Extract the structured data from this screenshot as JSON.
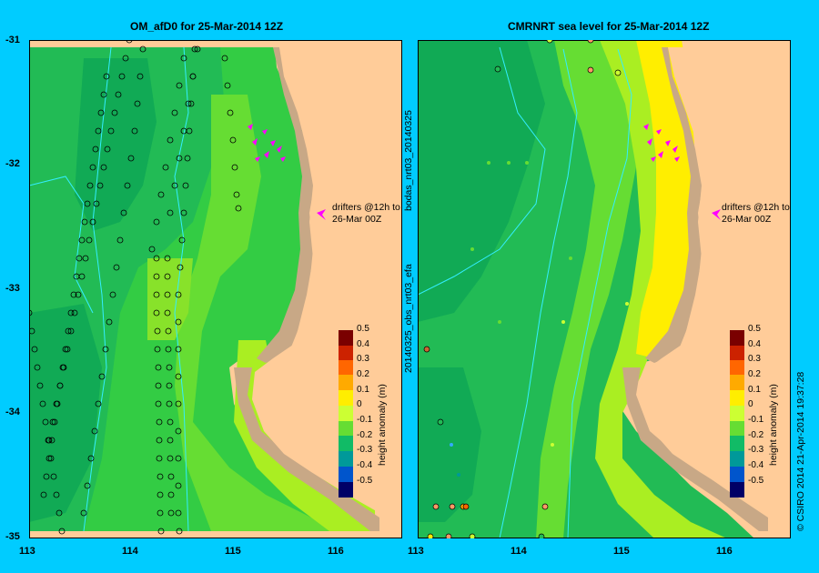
{
  "left_panel": {
    "title": "OM_afD0  for 25-Mar-2014 12Z",
    "drifter_note_line1": "drifters @12h to",
    "drifter_note_line2": "26-Mar 00Z"
  },
  "right_panel": {
    "title": "CMRNRT sea level  for 25-Mar-2014 12Z",
    "drifter_note_line1": "drifters @12h to",
    "drifter_note_line2": "26-Mar 00Z"
  },
  "side_labels": {
    "bodas": "bodas_nrt03_20140325",
    "obs": "20140325_obs_nrt03_efa",
    "credit": "© CSIRO 2014   21-Apr-2014 19:37:28"
  },
  "axes": {
    "y_ticks": [
      "-31",
      "-32",
      "-33",
      "-34",
      "-35"
    ],
    "x_ticks_left": [
      "113",
      "114",
      "115",
      "116"
    ],
    "x_ticks_right": [
      "113",
      "114",
      "115",
      "116"
    ]
  },
  "colorbar": {
    "title": "height anomaly (m)",
    "ticks": [
      "0.5",
      "0.4",
      "0.3",
      "0.2",
      "0.1",
      "0",
      "-0.1",
      "-0.2",
      "-0.3",
      "-0.4",
      "-0.5"
    ],
    "colors": [
      "#7a0000",
      "#cc2200",
      "#ff6600",
      "#ffaa00",
      "#ffee00",
      "#ccff33",
      "#66dd33",
      "#11bb66",
      "#009999",
      "#0055cc",
      "#001199",
      "#000066"
    ]
  },
  "colors": {
    "background": "#00ccff",
    "land": "#ffcc99",
    "shelf": "#c8a886",
    "drifter": "#ff00ff"
  }
}
